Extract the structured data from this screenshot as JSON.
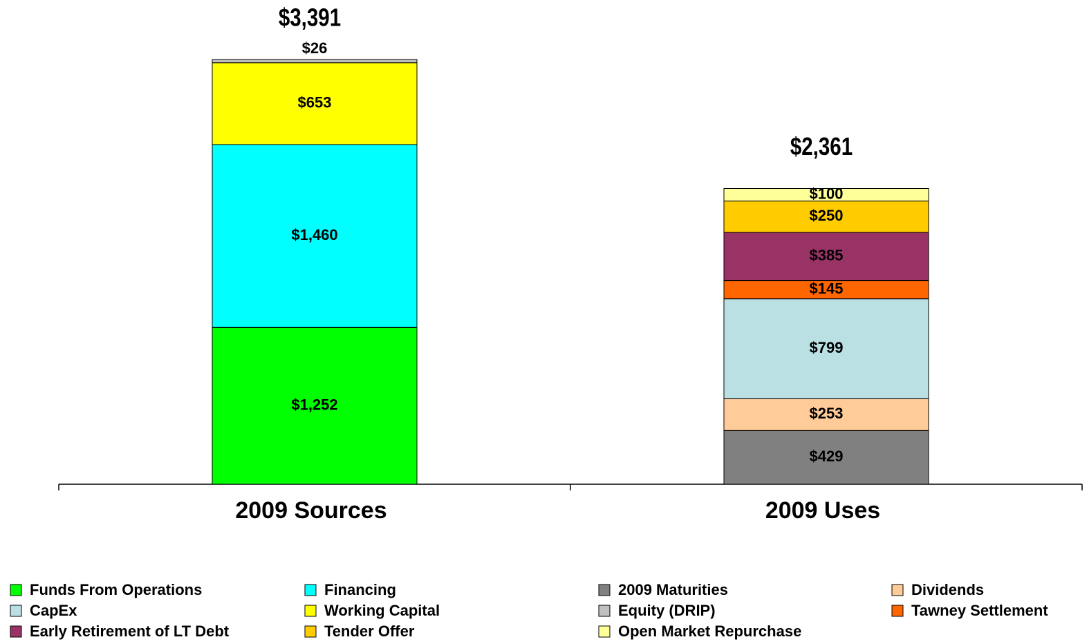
{
  "chart_data": {
    "type": "stacked_bar",
    "categories": [
      "2009 Sources",
      "2009 Uses"
    ],
    "series": [
      {
        "name": "Funds From Operations",
        "color": "#00ff00",
        "values": [
          1252,
          null
        ],
        "value_labels": [
          "$1,252",
          null
        ]
      },
      {
        "name": "Financing",
        "color": "#00ffff",
        "values": [
          1460,
          null
        ],
        "value_labels": [
          "$1,460",
          null
        ]
      },
      {
        "name": "2009 Maturities",
        "color": "#808080",
        "values": [
          null,
          429
        ],
        "value_labels": [
          null,
          "$429"
        ]
      },
      {
        "name": "Dividends",
        "color": "#ffcc99",
        "values": [
          null,
          253
        ],
        "value_labels": [
          null,
          "$253"
        ]
      },
      {
        "name": "CapEx",
        "color": "#bbe0e3",
        "values": [
          null,
          799
        ],
        "value_labels": [
          null,
          "$799"
        ]
      },
      {
        "name": "Working Capital",
        "color": "#ffff00",
        "values": [
          653,
          null
        ],
        "value_labels": [
          "$653",
          null
        ]
      },
      {
        "name": "Equity (DRIP)",
        "color": "#c0c0c0",
        "values": [
          26,
          null
        ],
        "value_labels": [
          "$26",
          null
        ]
      },
      {
        "name": "Tawney Settlement",
        "color": "#ff6600",
        "values": [
          null,
          145
        ],
        "value_labels": [
          null,
          "$145"
        ]
      },
      {
        "name": "Early Retirement of LT Debt",
        "color": "#993366",
        "values": [
          null,
          385
        ],
        "value_labels": [
          null,
          "$385"
        ]
      },
      {
        "name": "Tender Offer",
        "color": "#ffcc00",
        "values": [
          null,
          250
        ],
        "value_labels": [
          null,
          "$250"
        ]
      },
      {
        "name": "Open Market Repurchase",
        "color": "#ffff99",
        "values": [
          null,
          100
        ],
        "value_labels": [
          null,
          "$100"
        ]
      }
    ],
    "totals": [
      3391,
      2361
    ],
    "total_labels": [
      "$3,391",
      "$2,361"
    ],
    "legend": "bottom"
  }
}
